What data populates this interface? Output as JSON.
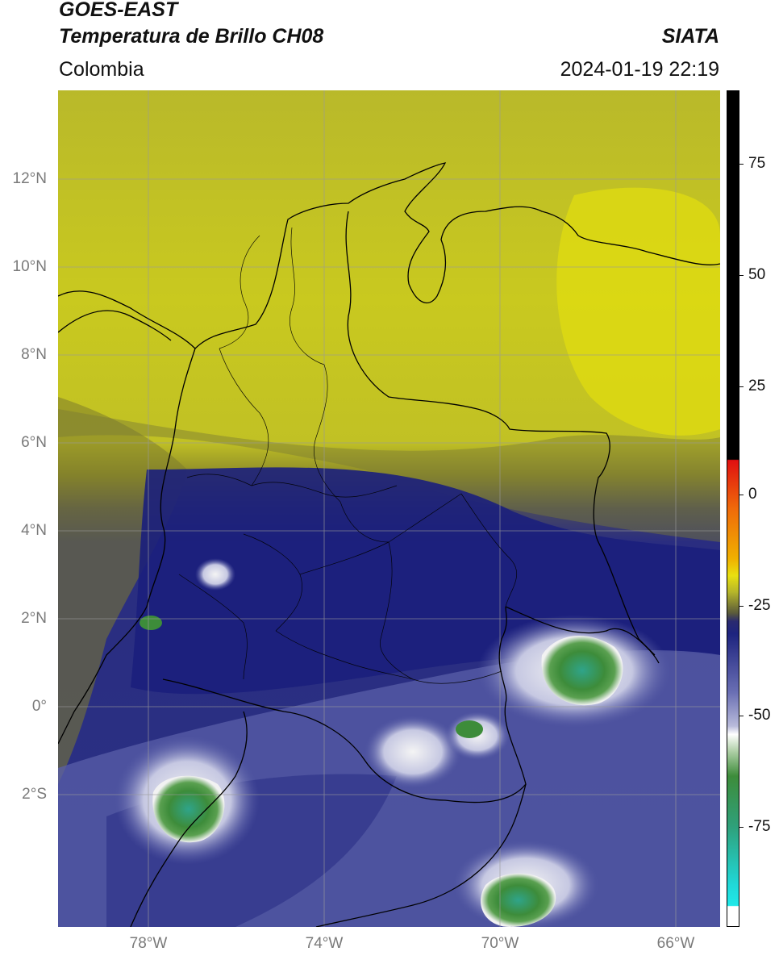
{
  "header": {
    "satellite": "GOES-EAST",
    "product": "Temperatura de Brillo CH08",
    "org": "SIATA",
    "region": "Colombia",
    "datetime": "2024-01-19 22:19"
  },
  "map": {
    "lat_labels": [
      "12°N",
      "10°N",
      "8°N",
      "6°N",
      "4°N",
      "2°N",
      "0°",
      "2°S"
    ],
    "lon_labels": [
      "78°W",
      "74°W",
      "70°W",
      "66°W"
    ],
    "colors": {
      "warm_yellow": "#c8c81e",
      "olive": "#8c8a2a",
      "deep_blue": "#1e247f",
      "mid_blue": "#5a5fa8",
      "cold_white": "#f2f2f2",
      "cold_green": "#3d8c3a",
      "border": "#000000",
      "grid": "#9a9a9a"
    }
  },
  "colorbar": {
    "ticks": [
      "75",
      "50",
      "25",
      "0",
      "-25",
      "-50",
      "-75"
    ]
  }
}
